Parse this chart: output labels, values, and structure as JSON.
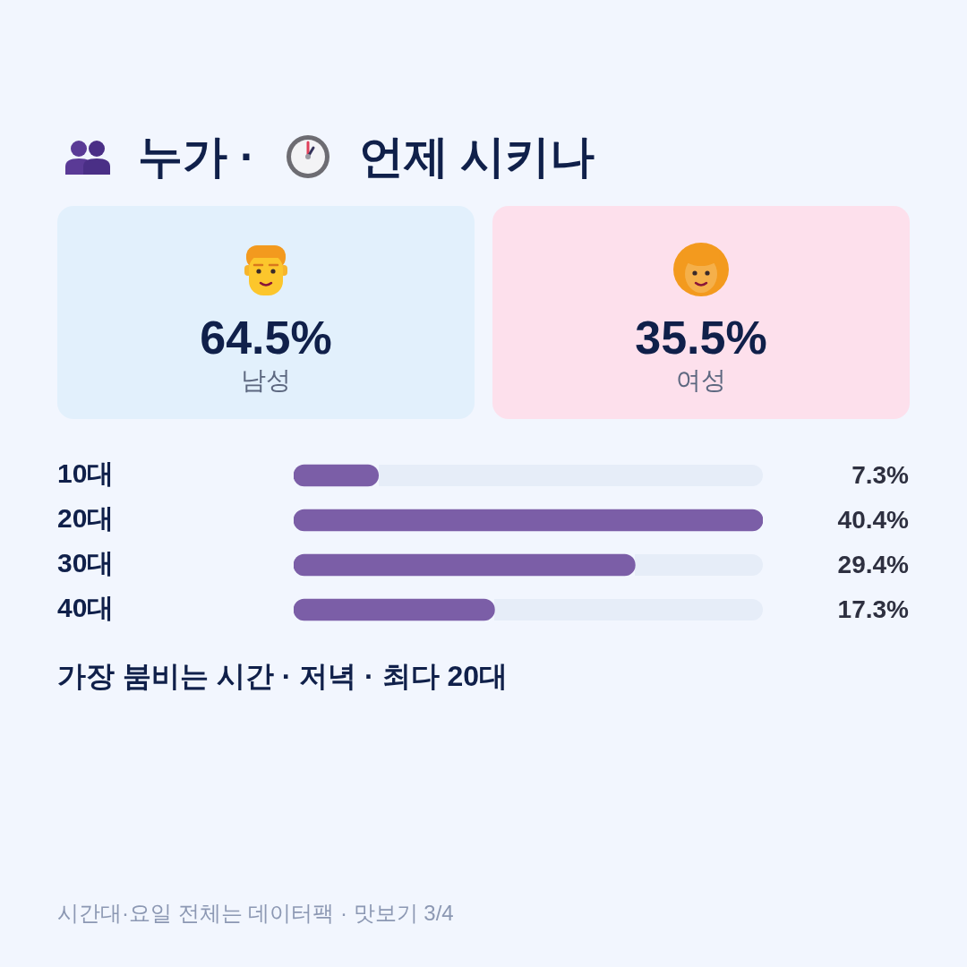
{
  "chart_data": [
    {
      "type": "other",
      "title": "누가 · 언제 시키나",
      "categories": [
        "남성",
        "여성"
      ],
      "value_labels": [
        "64.5%",
        "35.5%"
      ],
      "colors": [
        "#e2f0fc",
        "#fde0ec"
      ]
    },
    {
      "type": "bar",
      "orientation": "horizontal",
      "categories": [
        "10대",
        "20대",
        "30대",
        "40대"
      ],
      "values": [
        7.3,
        40.4,
        29.4,
        17.3
      ],
      "value_labels": [
        "7.3%",
        "40.4%",
        "29.4%",
        "17.3%"
      ],
      "color": "#7b5ea7",
      "xlim": [
        0,
        40.4
      ],
      "tick_labels": "y",
      "annotations": [
        "가장 붐비는 시간 · 저녁 · 최다 20대",
        "시간대·요일 전체는 데이터팩 · 맛보기 3/4"
      ]
    }
  ]
}
